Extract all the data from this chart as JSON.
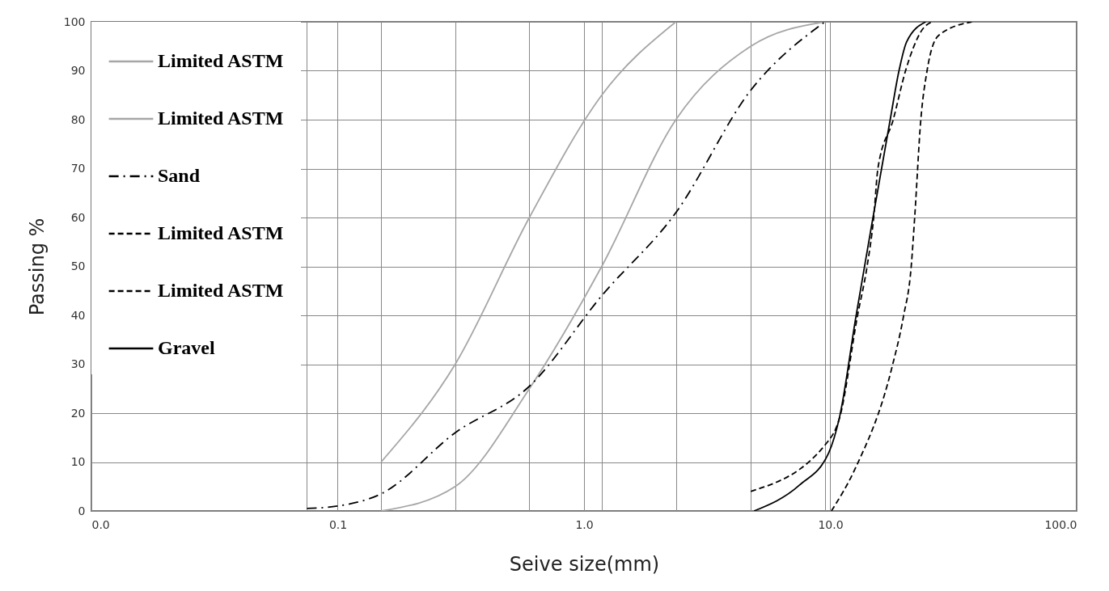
{
  "chart_data": {
    "type": "line",
    "xlabel": "Seive size(mm)",
    "ylabel": "Passing %",
    "log": "x",
    "xlim": [
      0.01,
      100
    ],
    "xticks": [
      {
        "value": 0.01,
        "label": "0.0"
      },
      {
        "value": 0.075,
        "label": null
      },
      0.1,
      {
        "value": 0.15,
        "label": null
      },
      {
        "value": 0.3,
        "label": null
      },
      {
        "value": 0.6,
        "label": null
      },
      {
        "value": 1,
        "label": "1.0"
      },
      {
        "value": 1.18,
        "label": null
      },
      {
        "value": 2.36,
        "label": null
      },
      {
        "value": 4.75,
        "label": null
      },
      {
        "value": 9.5,
        "label": null
      },
      {
        "value": 10,
        "label": "10.0"
      },
      {
        "value": 100,
        "label": "100.0"
      }
    ],
    "ylim": [
      0,
      100
    ],
    "yticks": [
      0,
      10,
      20,
      30,
      40,
      50,
      60,
      70,
      80,
      90,
      100
    ],
    "grid": true,
    "legend": "top left",
    "marker": "none",
    "series": [
      {
        "name": "Limited ASTM",
        "color": "#a6a6a6",
        "line_style": "solid",
        "x": [
          0.15,
          0.3,
          0.6,
          1.18,
          2.36
        ],
        "values": [
          10,
          30,
          60,
          85,
          100
        ]
      },
      {
        "name": "Limited ASTM",
        "color": "#a6a6a6",
        "line_style": "solid",
        "x": [
          0.15,
          0.3,
          0.6,
          1.18,
          2.36,
          4.75,
          9.5
        ],
        "values": [
          0,
          5,
          25,
          50,
          80,
          95,
          100
        ]
      },
      {
        "name": "Sand",
        "color": "#000000",
        "line_style": "dashdot",
        "x": [
          0.075,
          0.1,
          0.15,
          0.3,
          0.6,
          1.18,
          2.36,
          4.75,
          9.5
        ],
        "values": [
          0.5,
          1,
          3.5,
          16,
          25.5,
          44,
          61,
          86,
          100
        ]
      },
      {
        "name": "Limited ASTM",
        "color": "#000000",
        "line_style": "dashed",
        "x": [
          4.75,
          9.7,
          10.9,
          12.9,
          14.1,
          15,
          15.6,
          18,
          20.2,
          23.7,
          25.8
        ],
        "values": [
          4,
          14,
          19,
          40,
          50,
          60,
          70,
          80,
          90,
          98.5,
          100
        ]
      },
      {
        "name": "Limited ASTM",
        "color": "#000000",
        "line_style": "dashed",
        "x": [
          10.1,
          12.6,
          17.8,
          19.8,
          21.3,
          22,
          23.3,
          24.7,
          27.5,
          37.5
        ],
        "values": [
          0,
          8.6,
          29.4,
          39.7,
          50,
          60,
          80,
          90,
          97.2,
          100
        ]
      },
      {
        "name": "Gravel",
        "color": "#000000",
        "line_style": "solid",
        "x": [
          4.9,
          7.5,
          9.85,
          10.9,
          12.7,
          14.9,
          17.5,
          19,
          20.4,
          24.4
        ],
        "values": [
          0,
          5.3,
          11.9,
          19.2,
          39.7,
          60,
          80,
          90,
          95.9,
          100
        ]
      }
    ]
  }
}
